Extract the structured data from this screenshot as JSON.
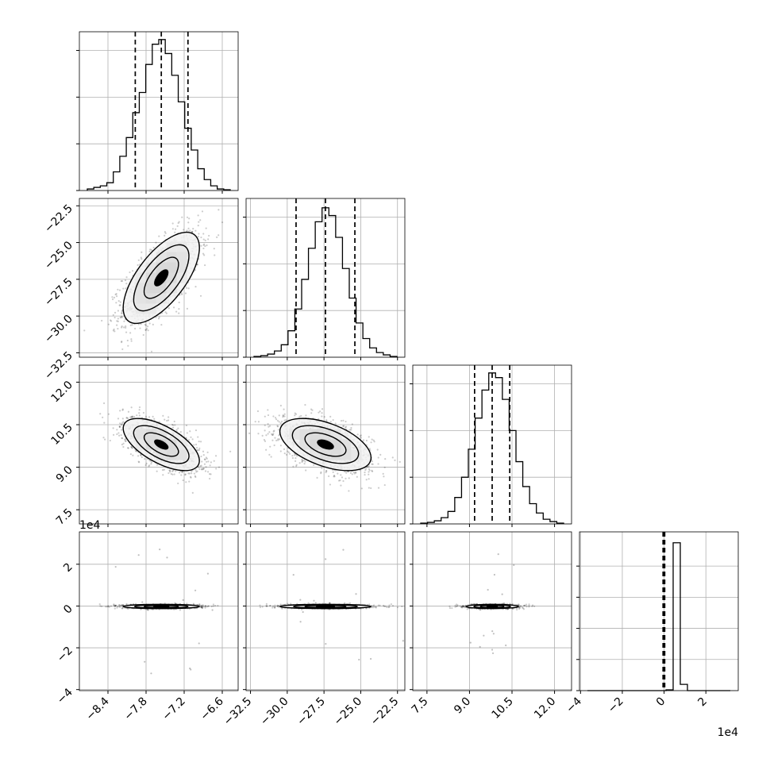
{
  "chart_data": {
    "type": "corner",
    "variables": [
      {
        "range": [
          -8.85,
          -6.35
        ],
        "ticks": [
          -8.4,
          -7.8,
          -7.2,
          -6.6
        ],
        "tick_labels": [
          "−8.4",
          "−7.8",
          "−7.2",
          "−6.6"
        ]
      },
      {
        "range": [
          -32.8,
          -22.0
        ],
        "ticks": [
          -32.5,
          -30.0,
          -27.5,
          -25.0,
          -22.5
        ],
        "tick_labels": [
          "−32.5",
          "−30.0",
          "−27.5",
          "−25.0",
          "−22.5"
        ]
      },
      {
        "range": [
          7.0,
          12.6
        ],
        "ticks": [
          7.5,
          9.0,
          10.5,
          12.0
        ],
        "tick_labels": [
          "7.5",
          "9.0",
          "10.5",
          "12.0"
        ]
      },
      {
        "range": [
          -4.05,
          3.55
        ],
        "ticks": [
          -4,
          -2,
          0,
          2
        ],
        "tick_labels": [
          "−4",
          "−2",
          "0",
          "2"
        ],
        "offset_label": "1e4"
      }
    ],
    "histograms": [
      {
        "counts": [
          1,
          2,
          3,
          5,
          12,
          22,
          34,
          50,
          63,
          81,
          94,
          97,
          88,
          74,
          57,
          40,
          26,
          14,
          7,
          3,
          1,
          0.5
        ],
        "quantiles": [
          -7.97,
          -7.56,
          -7.14
        ],
        "ylim": [
          0,
          102
        ],
        "ytick_values": [
          0,
          30,
          60,
          90
        ]
      },
      {
        "counts": [
          0.5,
          1,
          2,
          4,
          8,
          17,
          31,
          50,
          70,
          87,
          96,
          91,
          77,
          57,
          38,
          22,
          12,
          6,
          3,
          1.5,
          0.5
        ],
        "quantiles": [
          -29.4,
          -27.4,
          -25.4
        ],
        "ylim": [
          0,
          102
        ],
        "ytick_values": [
          0,
          30,
          60,
          90
        ]
      },
      {
        "counts": [
          0.5,
          1,
          2,
          4,
          8,
          17,
          30,
          48,
          68,
          86,
          97,
          94,
          80,
          60,
          40,
          24,
          13,
          7,
          3,
          1.5,
          0.5
        ],
        "quantiles": [
          9.18,
          9.8,
          10.42
        ],
        "ylim": [
          0,
          102
        ],
        "ytick_values": [
          0,
          30,
          60,
          90
        ]
      },
      {
        "counts": [
          0,
          0,
          0,
          0,
          0,
          0,
          0,
          0,
          0,
          0,
          0,
          0.5,
          95,
          4,
          0,
          0,
          0,
          0,
          0,
          0
        ],
        "quantiles": [
          -0.05,
          -0.01,
          0.03
        ],
        "ylim": [
          0,
          102
        ],
        "ytick_values": [
          0,
          20,
          40,
          60,
          80
        ]
      }
    ],
    "pairs": [
      {
        "row": 1,
        "col": 0,
        "center": [
          -7.56,
          -27.4
        ],
        "sigma": [
          0.3,
          1.55
        ],
        "rho": 0.66
      },
      {
        "row": 2,
        "col": 0,
        "center": [
          -7.56,
          9.8
        ],
        "sigma": [
          0.3,
          0.46
        ],
        "rho": -0.62
      },
      {
        "row": 2,
        "col": 1,
        "center": [
          -27.4,
          9.8
        ],
        "sigma": [
          1.55,
          0.46
        ],
        "rho": -0.5
      },
      {
        "row": 3,
        "col": 0,
        "center": [
          -7.56,
          -0.02
        ],
        "sigma": [
          0.3,
          0.05
        ],
        "rho": 0
      },
      {
        "row": 3,
        "col": 1,
        "center": [
          -27.4,
          -0.02
        ],
        "sigma": [
          1.55,
          0.05
        ],
        "rho": 0
      },
      {
        "row": 3,
        "col": 2,
        "center": [
          9.8,
          -0.02
        ],
        "sigma": [
          0.46,
          0.05
        ],
        "rho": 0
      }
    ],
    "grid": true
  }
}
